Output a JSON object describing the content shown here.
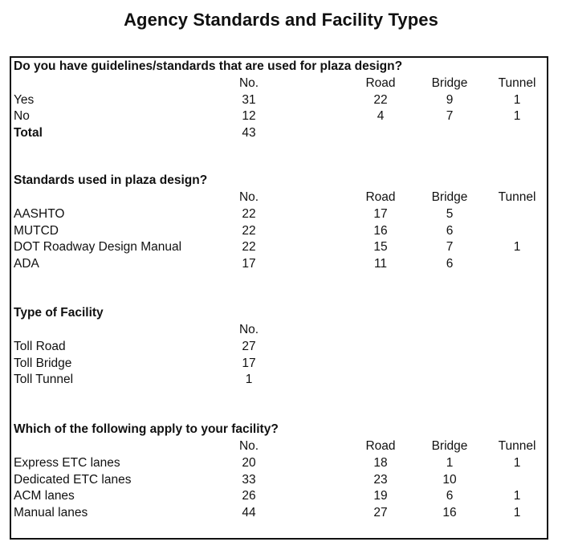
{
  "title": "Agency Standards and Facility Types",
  "sections": [
    {
      "title": "Do you have guidelines/standards that are used for plaza design?",
      "headers": [
        "No.",
        "Road",
        "Bridge",
        "Tunnel"
      ],
      "rows": [
        {
          "label": "Yes",
          "no": "31",
          "road": "22",
          "bridge": "9",
          "tunnel": "1"
        },
        {
          "label": "No",
          "no": "12",
          "road": "4",
          "bridge": "7",
          "tunnel": "1"
        },
        {
          "label": "Total",
          "no": "43",
          "road": "",
          "bridge": "",
          "tunnel": ""
        }
      ]
    },
    {
      "title": "Standards used in plaza design?",
      "headers": [
        "No.",
        "Road",
        "Bridge",
        "Tunnel"
      ],
      "rows": [
        {
          "label": "AASHTO",
          "no": "22",
          "road": "17",
          "bridge": "5",
          "tunnel": ""
        },
        {
          "label": "MUTCD",
          "no": "22",
          "road": "16",
          "bridge": "6",
          "tunnel": ""
        },
        {
          "label": "DOT Roadway Design Manual",
          "no": "22",
          "road": "15",
          "bridge": "7",
          "tunnel": "1"
        },
        {
          "label": "ADA",
          "no": "17",
          "road": "11",
          "bridge": "6",
          "tunnel": ""
        }
      ]
    },
    {
      "title": "Type of Facility",
      "headers": [
        "No.",
        "",
        "",
        ""
      ],
      "rows": [
        {
          "label": "Toll Road",
          "no": "27",
          "road": "",
          "bridge": "",
          "tunnel": ""
        },
        {
          "label": "Toll Bridge",
          "no": "17",
          "road": "",
          "bridge": "",
          "tunnel": ""
        },
        {
          "label": "Toll Tunnel",
          "no": "1",
          "road": "",
          "bridge": "",
          "tunnel": ""
        }
      ]
    },
    {
      "title": "Which of the following apply to your facility?",
      "headers": [
        "No.",
        "Road",
        "Bridge",
        "Tunnel"
      ],
      "rows": [
        {
          "label": "Express ETC lanes",
          "no": "20",
          "road": "18",
          "bridge": "1",
          "tunnel": "1"
        },
        {
          "label": "Dedicated ETC lanes",
          "no": "33",
          "road": "23",
          "bridge": "10",
          "tunnel": ""
        },
        {
          "label": "ACM lanes",
          "no": "26",
          "road": "19",
          "bridge": "6",
          "tunnel": "1"
        },
        {
          "label": "Manual lanes",
          "no": "44",
          "road": "27",
          "bridge": "16",
          "tunnel": "1"
        }
      ]
    }
  ]
}
